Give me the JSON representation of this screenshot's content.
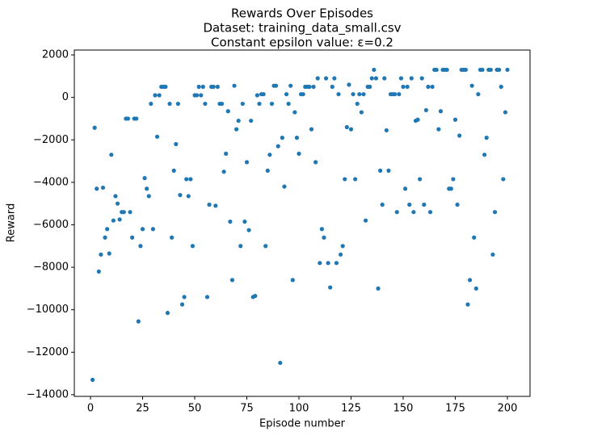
{
  "chart_data": {
    "type": "scatter",
    "title": "Rewards Over Episodes",
    "subtitle": [
      "Dataset: training_data_small.csv",
      "Constant epsilon value: ε=0.2"
    ],
    "x_label": "Episode number",
    "y_label": "Reward",
    "color": "#1f77b4",
    "xlim": [
      -7.75,
      210.85
    ],
    "ylim": [
      -14080,
      2230
    ],
    "xticks": [
      0,
      25,
      50,
      75,
      100,
      125,
      150,
      175,
      200
    ],
    "yticks": [
      2000,
      0,
      {
        "value": -2000,
        "label": "−2000"
      },
      {
        "value": -4000,
        "label": "−4000"
      },
      {
        "value": -6000,
        "label": "−6000"
      },
      {
        "value": -8000,
        "label": "−8000"
      },
      {
        "value": -10000,
        "label": "−10000"
      },
      {
        "value": -12000,
        "label": "−12000"
      },
      {
        "value": -14000,
        "label": "−14000"
      }
    ],
    "grid": false,
    "x": [
      1,
      2,
      3,
      4,
      5,
      6,
      7,
      8,
      9,
      10,
      11,
      12,
      13,
      14,
      15,
      16,
      17,
      18,
      19,
      20,
      21,
      22,
      23,
      24,
      25,
      26,
      27,
      28,
      29,
      30,
      31,
      32,
      33,
      34,
      35,
      36,
      37,
      38,
      39,
      40,
      41,
      42,
      43,
      44,
      45,
      46,
      47,
      48,
      49,
      50,
      51,
      52,
      53,
      54,
      55,
      56,
      57,
      58,
      59,
      60,
      61,
      62,
      63,
      64,
      65,
      66,
      67,
      68,
      69,
      70,
      71,
      72,
      73,
      74,
      75,
      76,
      77,
      78,
      79,
      80,
      81,
      82,
      83,
      84,
      85,
      86,
      87,
      88,
      89,
      90,
      91,
      92,
      93,
      94,
      95,
      96,
      97,
      98,
      99,
      100,
      101,
      102,
      103,
      104,
      105,
      106,
      107,
      108,
      109,
      110,
      111,
      112,
      113,
      114,
      115,
      116,
      117,
      118,
      119,
      120,
      121,
      122,
      123,
      124,
      125,
      126,
      127,
      128,
      129,
      130,
      131,
      132,
      133,
      134,
      135,
      136,
      137,
      138,
      139,
      140,
      141,
      142,
      143,
      144,
      145,
      146,
      147,
      148,
      149,
      150,
      151,
      152,
      153,
      154,
      155,
      156,
      157,
      158,
      159,
      160,
      161,
      162,
      163,
      164,
      165,
      166,
      167,
      168,
      169,
      170,
      171,
      172,
      173,
      174,
      175,
      176,
      177,
      178,
      179,
      180,
      181,
      182,
      183,
      184,
      185,
      186,
      187,
      188,
      189,
      190,
      191,
      192,
      193,
      194,
      195,
      196,
      197,
      198,
      199,
      200
    ],
    "values": [
      -13300,
      -1430,
      -4300,
      -8200,
      -7400,
      -4250,
      -6600,
      -6200,
      -7350,
      -2700,
      -5800,
      -4650,
      -5000,
      -5750,
      -5400,
      -5400,
      -1000,
      -1000,
      -5400,
      -6600,
      -1000,
      -1000,
      -10550,
      -7000,
      -6200,
      -3800,
      -4300,
      -4650,
      -300,
      -6200,
      100,
      -1850,
      100,
      500,
      500,
      500,
      -10150,
      -300,
      -6600,
      -3450,
      -2200,
      -300,
      -4600,
      -9750,
      -9400,
      -3850,
      -4650,
      -3850,
      -7000,
      100,
      100,
      500,
      100,
      500,
      -300,
      -9400,
      -5050,
      500,
      500,
      -5100,
      500,
      -300,
      -300,
      -3500,
      -2650,
      -650,
      -5850,
      -8600,
      550,
      -1500,
      -1100,
      -7000,
      -300,
      -5850,
      -3050,
      -6250,
      -1100,
      -9400,
      -9350,
      100,
      -300,
      150,
      150,
      -7000,
      -3450,
      -2700,
      -300,
      550,
      550,
      -2300,
      -12500,
      -1900,
      -4200,
      150,
      -300,
      550,
      -8600,
      -700,
      -1900,
      -2650,
      150,
      150,
      500,
      500,
      500,
      -1500,
      500,
      -3050,
      900,
      -7800,
      -6200,
      -6600,
      900,
      -7800,
      -8950,
      500,
      900,
      -7800,
      150,
      -7400,
      -7000,
      -3850,
      -1400,
      600,
      -1500,
      150,
      -3850,
      -300,
      150,
      -700,
      150,
      -5800,
      500,
      500,
      900,
      1300,
      900,
      -9000,
      -3450,
      -5050,
      900,
      -1550,
      -3450,
      150,
      150,
      150,
      -5400,
      150,
      900,
      500,
      -4300,
      500,
      -5050,
      900,
      -5400,
      -1100,
      -1050,
      -3850,
      900,
      -5050,
      -600,
      500,
      -5400,
      500,
      1300,
      1300,
      -1500,
      -650,
      1300,
      1300,
      1300,
      -4300,
      -4300,
      -3850,
      -1050,
      -5050,
      -1800,
      1300,
      1300,
      1300,
      -9750,
      -8600,
      550,
      -6600,
      -9000,
      150,
      1300,
      1300,
      -2700,
      -1900,
      1300,
      1300,
      -7400,
      -5400,
      1300,
      1300,
      500,
      -3850,
      -700,
      1300
    ]
  }
}
